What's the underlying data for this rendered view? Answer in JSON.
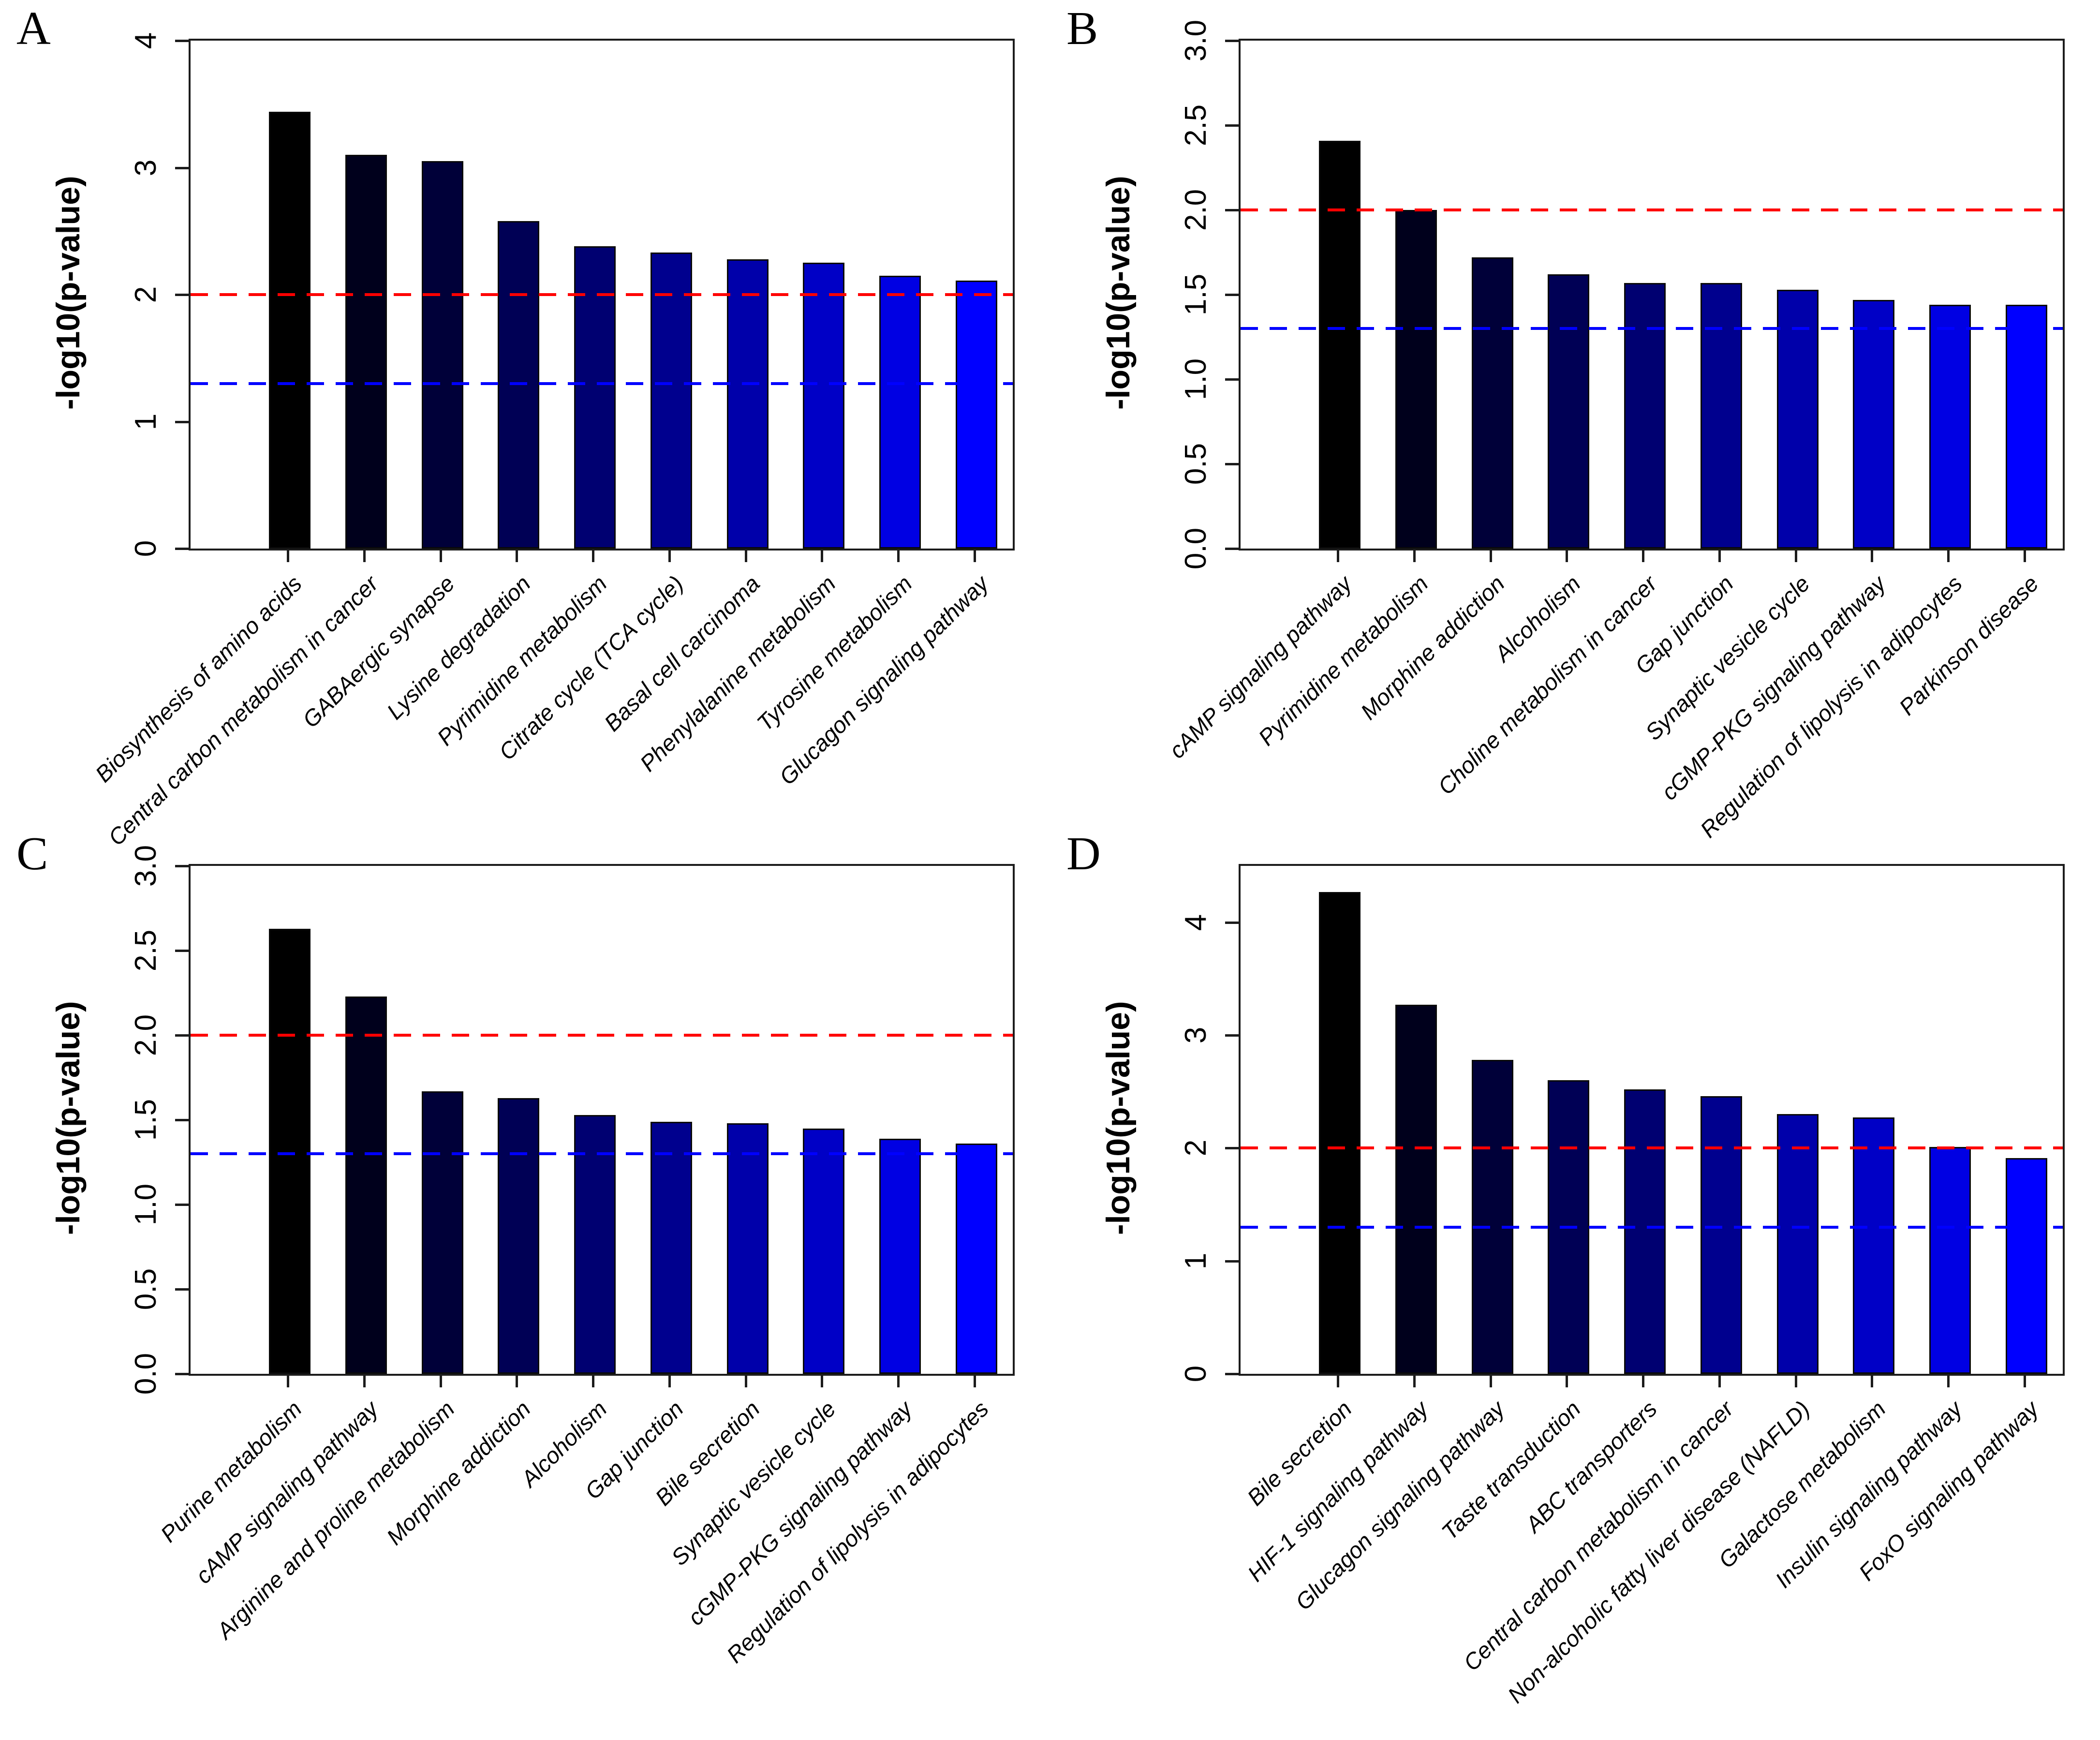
{
  "figure": {
    "ylabel": "-log10(p-value)",
    "panel_letters": [
      "A",
      "B",
      "C",
      "D"
    ],
    "bar_palette": [
      "#000000",
      "#00001C",
      "#000039",
      "#000055",
      "#000071",
      "#00008E",
      "#0000AA",
      "#0000C6",
      "#0000E3",
      "#0000FF"
    ],
    "threshold_red_color": "#ff0000",
    "threshold_blue_color": "#0000ff"
  },
  "chart_data": [
    {
      "type": "bar",
      "panel": "A",
      "ylabel": "-log10(p-value)",
      "ylim": [
        0,
        4
      ],
      "yticks": [
        "0",
        "1",
        "2",
        "3",
        "4"
      ],
      "grid": false,
      "categories": [
        "Biosynthesis of amino acids",
        "Central carbon metabolism in cancer",
        "GABAergic synapse",
        "Lysine degradation",
        "Pyrimidine metabolism",
        "Citrate cycle (TCA cycle)",
        "Basal cell carcinoma",
        "Phenylalanine metabolism",
        "Tyrosine metabolism",
        "Glucagon signaling pathway"
      ],
      "values": [
        3.44,
        3.1,
        3.05,
        2.58,
        2.38,
        2.33,
        2.28,
        2.25,
        2.15,
        2.11
      ],
      "bar_colors": [
        "#000000",
        "#00001C",
        "#000039",
        "#000055",
        "#000071",
        "#00008E",
        "#0000AA",
        "#0000C6",
        "#0000E3",
        "#0000FF"
      ],
      "threshold_lines": [
        {
          "name": "red-threshold-line",
          "y": 2.0,
          "color": "#ff0000",
          "style": "dashed"
        },
        {
          "name": "blue-threshold-line",
          "y": 1.3,
          "color": "#0000ff",
          "style": "dashed"
        }
      ]
    },
    {
      "type": "bar",
      "panel": "B",
      "ylabel": "-log10(p-value)",
      "ylim": [
        0,
        3
      ],
      "yticks": [
        "0.0",
        "0.5",
        "1.0",
        "1.5",
        "2.0",
        "2.5",
        "3.0"
      ],
      "grid": false,
      "categories": [
        "cAMP signaling pathway",
        "Pyrimidine metabolism",
        "Morphine addiction",
        "Alcoholism",
        "Choline metabolism in cancer",
        "Gap junction",
        "Synaptic vesicle cycle",
        "cGMP-PKG signaling pathway",
        "Regulation of lipolysis in adipocytes",
        "Parkinson disease"
      ],
      "values": [
        2.41,
        2.0,
        1.72,
        1.62,
        1.57,
        1.57,
        1.53,
        1.47,
        1.44,
        1.44
      ],
      "bar_colors": [
        "#000000",
        "#00001C",
        "#000039",
        "#000055",
        "#000071",
        "#00008E",
        "#0000AA",
        "#0000C6",
        "#0000E3",
        "#0000FF"
      ],
      "threshold_lines": [
        {
          "name": "red-threshold-line",
          "y": 2.0,
          "color": "#ff0000",
          "style": "dashed"
        },
        {
          "name": "blue-threshold-line",
          "y": 1.3,
          "color": "#0000ff",
          "style": "dashed"
        }
      ]
    },
    {
      "type": "bar",
      "panel": "C",
      "ylabel": "-log10(p-value)",
      "ylim": [
        0,
        3
      ],
      "yticks": [
        "0.0",
        "0.5",
        "1.0",
        "1.5",
        "2.0",
        "2.5",
        "3.0"
      ],
      "grid": false,
      "categories": [
        "Purine metabolism",
        "cAMP signaling pathway",
        "Arginine and proline metabolism",
        "Morphine addiction",
        "Alcoholism",
        "Gap junction",
        "Bile secretion",
        "Synaptic vesicle cycle",
        "cGMP-PKG signaling pathway",
        "Regulation of lipolysis in adipocytes"
      ],
      "values": [
        2.63,
        2.23,
        1.67,
        1.63,
        1.53,
        1.49,
        1.48,
        1.45,
        1.39,
        1.36
      ],
      "bar_colors": [
        "#000000",
        "#00001C",
        "#000039",
        "#000055",
        "#000071",
        "#00008E",
        "#0000AA",
        "#0000C6",
        "#0000E3",
        "#0000FF"
      ],
      "threshold_lines": [
        {
          "name": "red-threshold-line",
          "y": 2.0,
          "color": "#ff0000",
          "style": "dashed"
        },
        {
          "name": "blue-threshold-line",
          "y": 1.3,
          "color": "#0000ff",
          "style": "dashed"
        }
      ]
    },
    {
      "type": "bar",
      "panel": "D",
      "ylabel": "-log10(p-value)",
      "ylim": [
        0,
        4.5
      ],
      "yticks": [
        "0",
        "1",
        "2",
        "3",
        "4"
      ],
      "grid": false,
      "categories": [
        "Bile secretion",
        "HIF-1 signaling pathway",
        "Glucagon signaling pathway",
        "Taste transduction",
        "ABC transporters",
        "Central carbon metabolism in cancer",
        "Non-alcoholic fatty liver disease (NAFLD)",
        "Galactose metabolism",
        "Insulin signaling pathway",
        "FoxO signaling pathway"
      ],
      "values": [
        4.27,
        3.27,
        2.78,
        2.6,
        2.52,
        2.46,
        2.3,
        2.27,
        2.01,
        1.91
      ],
      "bar_colors": [
        "#000000",
        "#00001C",
        "#000039",
        "#000055",
        "#000071",
        "#00008E",
        "#0000AA",
        "#0000C6",
        "#0000E3",
        "#0000FF"
      ],
      "threshold_lines": [
        {
          "name": "red-threshold-line",
          "y": 2.0,
          "color": "#ff0000",
          "style": "dashed"
        },
        {
          "name": "blue-threshold-line",
          "y": 1.3,
          "color": "#0000ff",
          "style": "dashed"
        }
      ]
    }
  ]
}
